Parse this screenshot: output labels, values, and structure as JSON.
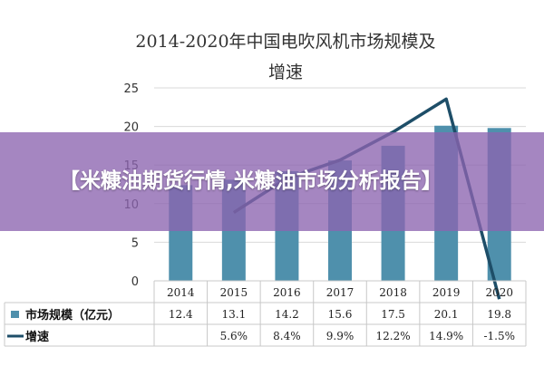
{
  "overlay": {
    "headline": "【米糠油期货行情,米糠油市场分析报告】"
  },
  "chart_data": {
    "type": "bar",
    "title_line1": "2014-2020年中国电吹风机市场规模及",
    "title_line2": "增速",
    "categories": [
      "2014",
      "2015",
      "2016",
      "2017",
      "2018",
      "2019",
      "2020"
    ],
    "yticks": [
      "0",
      "5",
      "10",
      "15",
      "20",
      "25"
    ],
    "ylim": [
      0,
      25
    ],
    "grid": true,
    "series": [
      {
        "name": "市场规模（亿元）",
        "kind": "bar",
        "color": "#4f90ac",
        "values": [
          12.4,
          13.1,
          14.2,
          15.6,
          17.5,
          20.1,
          19.8
        ],
        "labels": [
          "12.4",
          "13.1",
          "14.2",
          "15.6",
          "17.5",
          "20.1",
          "19.8"
        ]
      },
      {
        "name": "增速",
        "kind": "line",
        "color": "#1e4e68",
        "values": [
          null,
          5.6,
          8.4,
          9.9,
          12.2,
          14.9,
          -1.5
        ],
        "labels": [
          "",
          "5.6%",
          "8.4%",
          "9.9%",
          "12.2%",
          "14.9%",
          "-1.5%"
        ]
      }
    ]
  }
}
